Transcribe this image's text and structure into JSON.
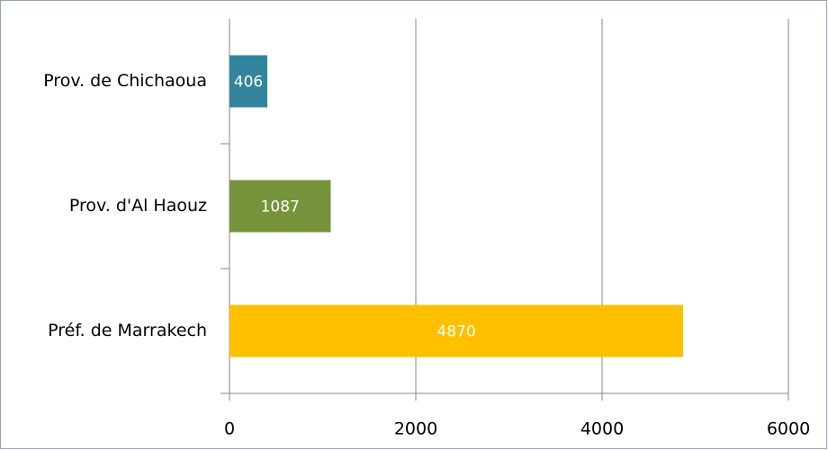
{
  "chart_data": {
    "type": "bar",
    "orientation": "horizontal",
    "categories": [
      "Prov. de Chichaoua",
      "Prov. d'Al Haouz",
      "Préf. de Marrakech"
    ],
    "values": [
      406,
      1087,
      4870
    ],
    "colors": [
      "#31849b",
      "#77933c",
      "#ffc000"
    ],
    "xlim": [
      0,
      6000
    ],
    "xticks": [
      0,
      2000,
      4000,
      6000
    ],
    "grid": true
  }
}
